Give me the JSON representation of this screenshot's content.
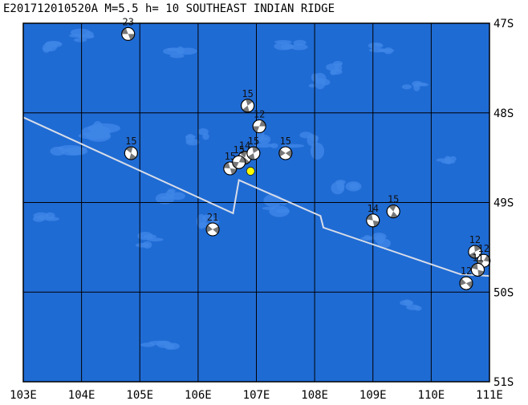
{
  "title": "E201712010520A M=5.5 h= 10 SOUTHEAST INDIAN RIDGE",
  "colors": {
    "ocean": "#1f6bd4",
    "seamount": "#3f86e6",
    "grid": "#000000",
    "ridge": "#d8dde8",
    "epicenter": "#ffff00"
  },
  "lon_labels": [
    "103E",
    "104E",
    "105E",
    "106E",
    "107E",
    "108E",
    "109E",
    "110E",
    "111E"
  ],
  "lat_labels": [
    "47S",
    "48S",
    "49S",
    "50S",
    "51S"
  ],
  "lon_values": [
    103,
    104,
    105,
    106,
    107,
    108,
    109,
    110,
    111
  ],
  "lat_values": [
    47,
    48,
    49,
    50,
    51
  ],
  "ridge_path": [
    [
      103,
      48.05
    ],
    [
      106.6,
      49.12
    ],
    [
      106.7,
      48.75
    ],
    [
      108.1,
      49.15
    ],
    [
      108.15,
      49.28
    ],
    [
      110.5,
      49.8
    ],
    [
      111,
      49.82
    ]
  ],
  "events": [
    {
      "lon": 104.8,
      "lat": 47.12,
      "depth": "23"
    },
    {
      "lon": 104.85,
      "lat": 48.45,
      "depth": "15"
    },
    {
      "lon": 106.85,
      "lat": 47.92,
      "depth": "15"
    },
    {
      "lon": 107.05,
      "lat": 48.15,
      "depth": "12"
    },
    {
      "lon": 107.5,
      "lat": 48.45,
      "depth": "15"
    },
    {
      "lon": 106.55,
      "lat": 48.62,
      "depth": "15"
    },
    {
      "lon": 106.8,
      "lat": 48.5,
      "depth": "14"
    },
    {
      "lon": 106.95,
      "lat": 48.45,
      "depth": "15"
    },
    {
      "lon": 106.7,
      "lat": 48.55,
      "depth": "15"
    },
    {
      "lon": 106.25,
      "lat": 49.3,
      "depth": "21"
    },
    {
      "lon": 109.0,
      "lat": 49.2,
      "depth": "14"
    },
    {
      "lon": 109.35,
      "lat": 49.1,
      "depth": "15"
    },
    {
      "lon": 110.75,
      "lat": 49.55,
      "depth": "12"
    },
    {
      "lon": 110.9,
      "lat": 49.65,
      "depth": "12"
    },
    {
      "lon": 110.6,
      "lat": 49.9,
      "depth": "12"
    },
    {
      "lon": 110.8,
      "lat": 49.75,
      "depth": "11"
    }
  ],
  "epicenter": {
    "lon": 106.9,
    "lat": 48.65
  }
}
